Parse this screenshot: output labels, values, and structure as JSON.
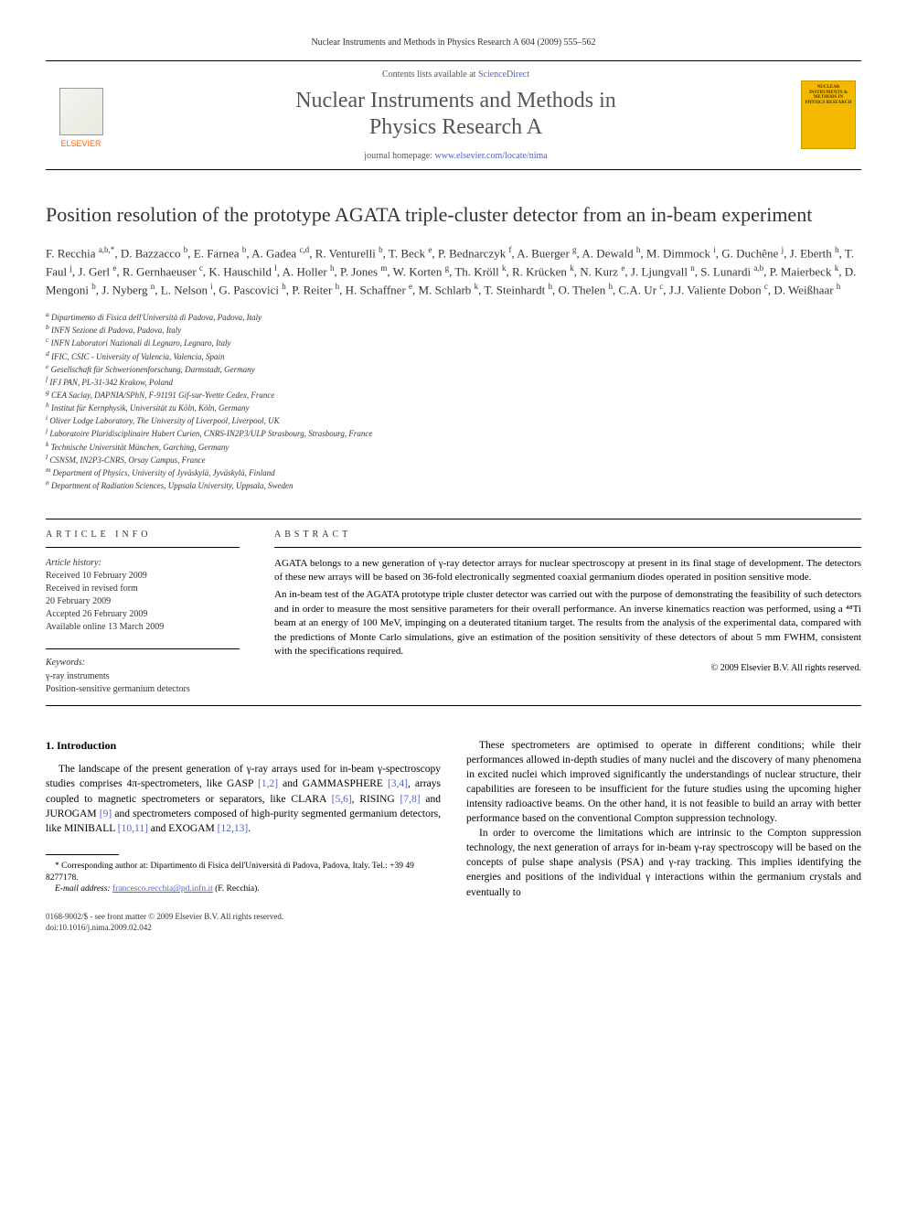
{
  "header": {
    "running_head": "Nuclear Instruments and Methods in Physics Research A 604 (2009) 555–562"
  },
  "banner": {
    "contents_prefix": "Contents lists available at ",
    "contents_link": "ScienceDirect",
    "journal_title_line1": "Nuclear Instruments and Methods in",
    "journal_title_line2": "Physics Research A",
    "homepage_prefix": "journal homepage: ",
    "homepage_url": "www.elsevier.com/locate/nima",
    "publisher_logo_label": "ELSEVIER",
    "cover_text": "NUCLEAR INSTRUMENTS & METHODS IN PHYSICS RESEARCH"
  },
  "article": {
    "title": "Position resolution of the prototype AGATA triple-cluster detector from an in-beam experiment",
    "authors_html": "F. Recchia <sup>a,b,*</sup>, D. Bazzacco <sup>b</sup>, E. Farnea <sup>b</sup>, A. Gadea <sup>c,d</sup>, R. Venturelli <sup>b</sup>, T. Beck <sup>e</sup>, P. Bednarczyk <sup>f</sup>, A. Buerger <sup>g</sup>, A. Dewald <sup>h</sup>, M. Dimmock <sup>i</sup>, G. Duchêne <sup>j</sup>, J. Eberth <sup>h</sup>, T. Faul <sup>j</sup>, J. Gerl <sup>e</sup>, R. Gernhaeuser <sup>c</sup>, K. Hauschild <sup>l</sup>, A. Holler <sup>h</sup>, P. Jones <sup>m</sup>, W. Korten <sup>g</sup>, Th. Kröll <sup>k</sup>, R. Krücken <sup>k</sup>, N. Kurz <sup>e</sup>, J. Ljungvall <sup>n</sup>, S. Lunardi <sup>a,b</sup>, P. Maierbeck <sup>k</sup>, D. Mengoni <sup>b</sup>, J. Nyberg <sup>n</sup>, L. Nelson <sup>i</sup>, G. Pascovici <sup>h</sup>, P. Reiter <sup>h</sup>, H. Schaffner <sup>e</sup>, M. Schlarb <sup>k</sup>, T. Steinhardt <sup>h</sup>, O. Thelen <sup>h</sup>, C.A. Ur <sup>c</sup>, J.J. Valiente Dobon <sup>c</sup>, D. Weißhaar <sup>h</sup>",
    "affiliations": [
      "a Dipartimento di Fisica dell'Università di Padova, Padova, Italy",
      "b INFN Sezione di Padova, Padova, Italy",
      "c INFN Laboratori Nazionali di Legnaro, Legnaro, Italy",
      "d IFIC, CSIC - University of Valencia, Valencia, Spain",
      "e Gesellschaft für Schwerionenforschung, Darmstadt, Germany",
      "f IFJ PAN, PL-31-342 Krakow, Poland",
      "g CEA Saclay, DAPNIA/SPhN, F-91191 Gif-sur-Yvette Cedex, France",
      "h Institut für Kernphysik, Universität zu Köln, Köln, Germany",
      "i Oliver Lodge Laboratory, The University of Liverpool, Liverpool, UK",
      "j Laboratoire Pluridisciplinaire Hubert Curien, CNRS-IN2P3/ULP Strasbourg, Strasbourg, France",
      "k Technische Universität München, Garching, Germany",
      "l CSNSM, IN2P3-CNRS, Orsay Campus, France",
      "m Department of Physics, University of Jyväskylä, Jyväskylä, Finland",
      "n Department of Radiation Sciences, Uppsala University, Uppsala, Sweden"
    ]
  },
  "article_info": {
    "label": "ARTICLE INFO",
    "history_label": "Article history:",
    "history": [
      "Received 10 February 2009",
      "Received in revised form",
      "20 February 2009",
      "Accepted 26 February 2009",
      "Available online 13 March 2009"
    ],
    "keywords_label": "Keywords:",
    "keywords": [
      "γ-ray instruments",
      "Position-sensitive germanium detectors"
    ]
  },
  "abstract": {
    "label": "ABSTRACT",
    "p1": "AGATA belongs to a new generation of γ-ray detector arrays for nuclear spectroscopy at present in its final stage of development. The detectors of these new arrays will be based on 36-fold electronically segmented coaxial germanium diodes operated in position sensitive mode.",
    "p2": "An in-beam test of the AGATA prototype triple cluster detector was carried out with the purpose of demonstrating the feasibility of such detectors and in order to measure the most sensitive parameters for their overall performance. An inverse kinematics reaction was performed, using a ⁴⁸Ti beam at an energy of 100 MeV, impinging on a deuterated titanium target. The results from the analysis of the experimental data, compared with the predictions of Monte Carlo simulations, give an estimation of the position sensitivity of these detectors of about 5 mm FWHM, consistent with the specifications required.",
    "copyright": "© 2009 Elsevier B.V. All rights reserved."
  },
  "body": {
    "section_heading": "1. Introduction",
    "col1_p1_pre": "The landscape of the present generation of γ-ray arrays used for in-beam γ-spectroscopy studies comprises 4π-spectrometers, like GASP ",
    "ref_1_2": "[1,2]",
    "col1_p1_mid1": " and GAMMASPHERE ",
    "ref_3_4": "[3,4]",
    "col1_p1_mid2": ", arrays coupled to magnetic spectrometers or separators, like CLARA ",
    "ref_5_6": "[5,6]",
    "col1_p1_mid3": ", RISING ",
    "ref_7_8": "[7,8]",
    "col1_p1_mid4": " and JUROGAM ",
    "ref_9": "[9]",
    "col1_p1_mid5": " and spectrometers composed of high-purity segmented germanium detectors, like MINIBALL ",
    "ref_10_11": "[10,11]",
    "col1_p1_mid6": " and EXOGAM ",
    "ref_12_13": "[12,13]",
    "col1_p1_end": ".",
    "col2_p1": "These spectrometers are optimised to operate in different conditions; while their performances allowed in-depth studies of many nuclei and the discovery of many phenomena in excited nuclei which improved significantly the understandings of nuclear structure, their capabilities are foreseen to be insufficient for the future studies using the upcoming higher intensity radioactive beams. On the other hand, it is not feasible to build an array with better performance based on the conventional Compton suppression technology.",
    "col2_p2": "In order to overcome the limitations which are intrinsic to the Compton suppression technology, the next generation of arrays for in-beam γ-ray spectroscopy will be based on the concepts of pulse shape analysis (PSA) and γ-ray tracking. This implies identifying the energies and positions of the individual γ interactions within the germanium crystals and eventually to"
  },
  "footnote": {
    "corr": "* Corresponding author at: Dipartimento di Fisica dell'Università di Padova, Padova, Italy. Tel.: +39 49 8277178.",
    "email_label": "E-mail address: ",
    "email": "francesco.recchia@pd.infn.it",
    "email_suffix": " (F. Recchia)."
  },
  "footer": {
    "line1": "0168-9002/$ - see front matter © 2009 Elsevier B.V. All rights reserved.",
    "line2": "doi:10.1016/j.nima.2009.02.042"
  },
  "style": {
    "link_color": "#5565c5",
    "accent_orange": "#ff6600",
    "cover_yellow": "#f5b800"
  }
}
